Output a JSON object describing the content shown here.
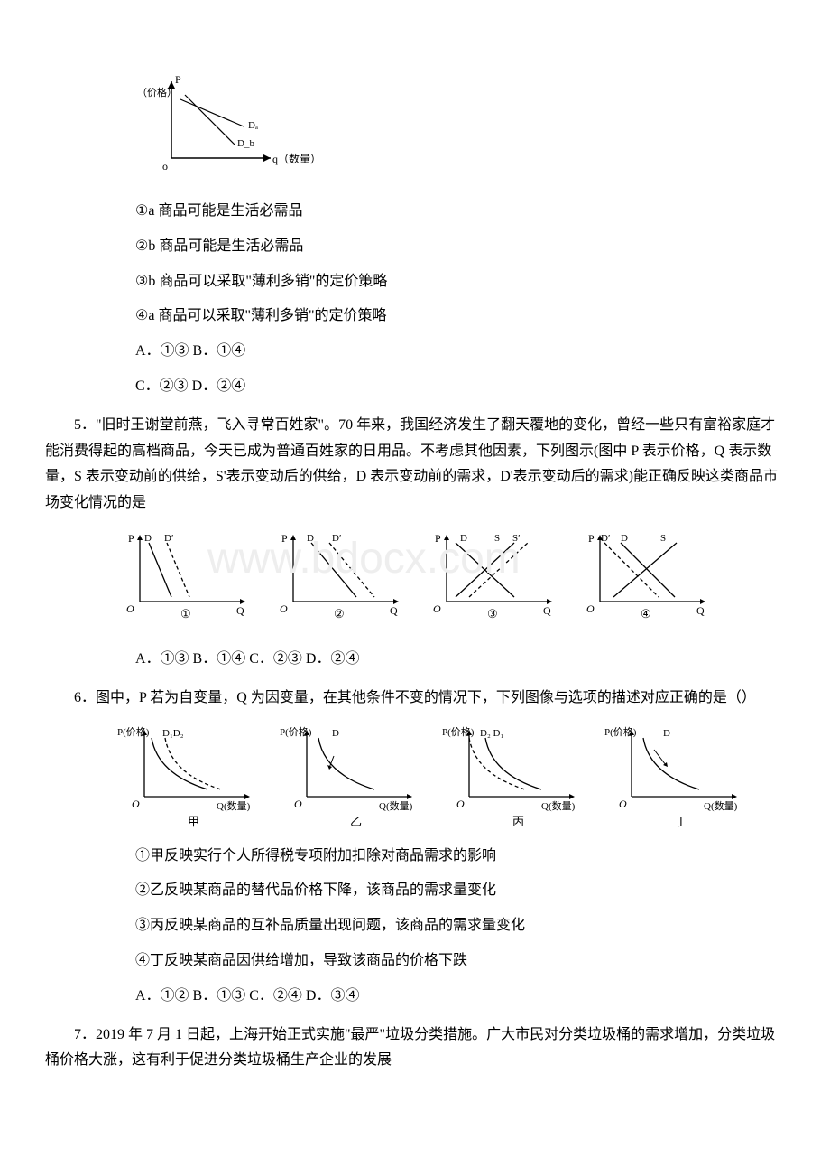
{
  "watermark": "www.bdocx.com",
  "diagram4": {
    "y_label": "P",
    "y_label_sub": "（价格）",
    "x_label": "q（数量）",
    "origin": "o",
    "line_a": "Dₐ",
    "line_b": "D_b",
    "axis_color": "#000",
    "line_color": "#000"
  },
  "q4": {
    "s1": "①a 商品可能是生活必需品",
    "s2": "②b 商品可能是生活必需品",
    "s3": "③b 商品可以采取\"薄利多销\"的定价策略",
    "s4": "④a 商品可以采取\"薄利多销\"的定价策略",
    "optA": "A．①③ B．①④",
    "optC": "C．②③ D．②④"
  },
  "q5": {
    "text": "5．\"旧时王谢堂前燕，飞入寻常百姓家\"。70 年来，我国经济发生了翻天覆地的变化，曾经一些只有富裕家庭才能消费得起的高档商品，今天已成为普通百姓家的日用品。不考虑其他因素，下列图示(图中 P 表示价格，Q 表示数量，S 表示变动前的供给，S'表示变动后的供给，D 表示变动前的需求，D'表示变动后的需求)能正确反映这类商品市场变化情况的是",
    "panels": [
      {
        "yl": "P",
        "xl": "Q",
        "o": "O",
        "n": "①",
        "labels": [
          "D",
          "D′"
        ]
      },
      {
        "yl": "P",
        "xl": "Q",
        "o": "O",
        "n": "②",
        "labels": [
          "D",
          "D′"
        ]
      },
      {
        "yl": "P",
        "xl": "Q",
        "o": "O",
        "n": "③",
        "labels": [
          "D",
          "S",
          "S′"
        ]
      },
      {
        "yl": "P",
        "xl": "Q",
        "o": "O",
        "n": "④",
        "labels": [
          "D′",
          "D",
          "S"
        ]
      }
    ],
    "opts": "A．①③ B．①④ C．②③ D．②④"
  },
  "q6": {
    "text": "6．图中，P 若为自变量，Q 为因变量，在其他条件不变的情况下，下列图像与选项的描述对应正确的是（）",
    "panels": [
      {
        "yl": "P(价格)",
        "xl": "Q(数量)",
        "o": "O",
        "n": "甲",
        "labels": [
          "D₁",
          "D₂"
        ]
      },
      {
        "yl": "P(价格)",
        "xl": "Q(数量)",
        "o": "O",
        "n": "乙",
        "labels": [
          "D"
        ]
      },
      {
        "yl": "P(价格)",
        "xl": "Q(数量)",
        "o": "O",
        "n": "丙",
        "labels": [
          "D₂",
          "D₁"
        ]
      },
      {
        "yl": "P(价格)",
        "xl": "Q(数量)",
        "o": "O",
        "n": "丁",
        "labels": [
          "D"
        ]
      }
    ],
    "s1": "①甲反映实行个人所得税专项附加扣除对商品需求的影响",
    "s2": "②乙反映某商品的替代品价格下降，该商品的需求量变化",
    "s3": "③丙反映某商品的互补品质量出现问题，该商品的需求量变化",
    "s4": "④丁反映某商品因供给增加，导致该商品的价格下跌",
    "opts": "A．①② B．①③ C．②④ D．③④"
  },
  "q7": {
    "text": "7．2019 年 7 月 1 日起，上海开始正式实施\"最严\"垃圾分类措施。广大市民对分类垃圾桶的需求增加，分类垃圾桶价格大涨，这有利于促进分类垃圾桶生产企业的发展"
  },
  "colors": {
    "axis": "#000000",
    "curve": "#000000"
  }
}
